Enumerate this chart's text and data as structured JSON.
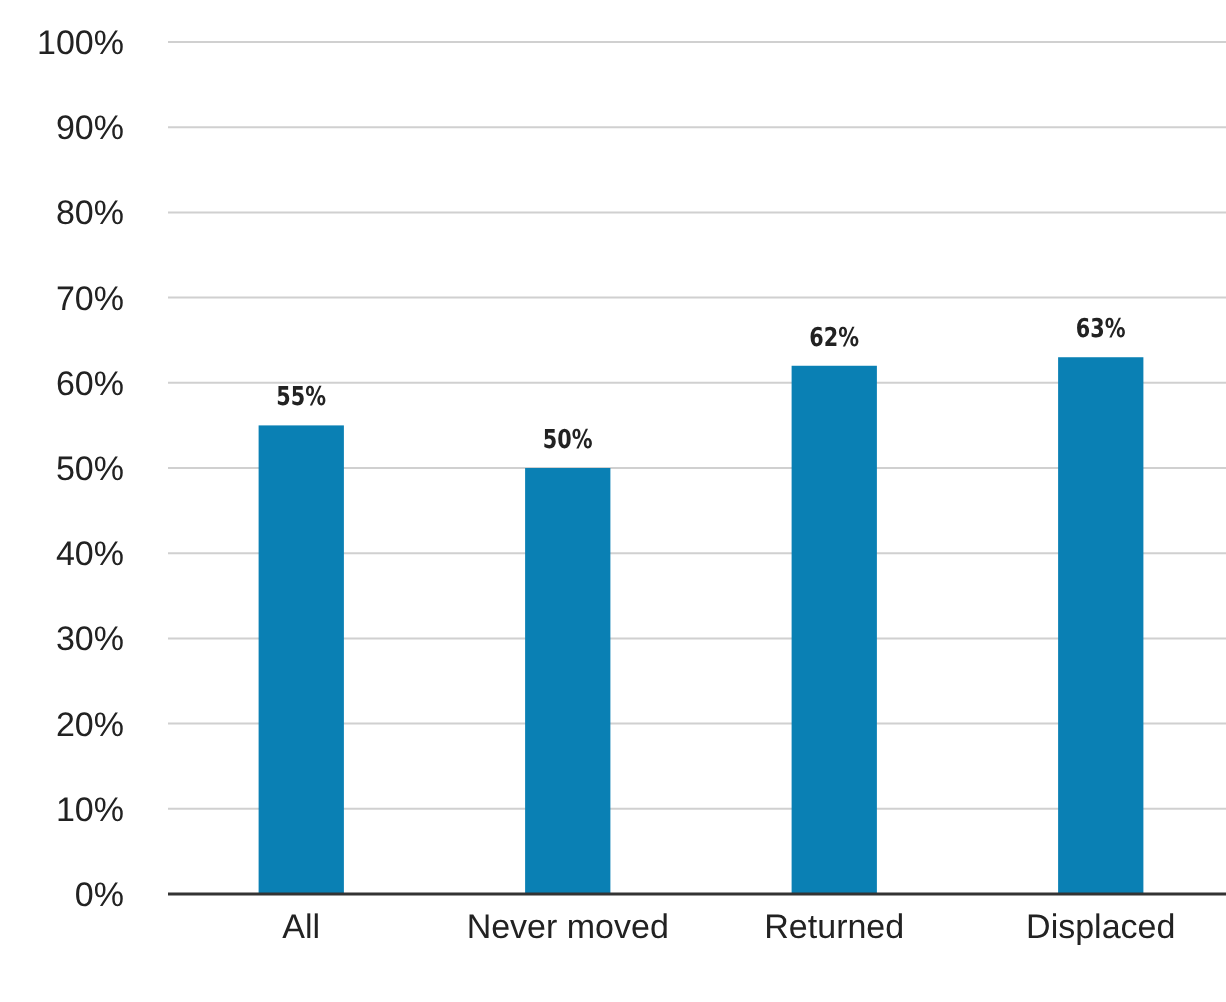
{
  "chart_data": {
    "type": "bar",
    "categories": [
      "All",
      "Never moved",
      "Returned",
      "Displaced"
    ],
    "values": [
      55,
      50,
      62,
      63
    ],
    "value_labels": [
      "55%",
      "50%",
      "62%",
      "63%"
    ],
    "color": "#0a80b4",
    "ylim": [
      0,
      100
    ],
    "yticks": [
      {
        "value": 0,
        "label": "0%"
      },
      {
        "value": 10,
        "label": "10%"
      },
      {
        "value": 20,
        "label": "20%"
      },
      {
        "value": 30,
        "label": "30%"
      },
      {
        "value": 40,
        "label": "40%"
      },
      {
        "value": 50,
        "label": "50%"
      },
      {
        "value": 60,
        "label": "60%"
      },
      {
        "value": 70,
        "label": "70%"
      },
      {
        "value": 80,
        "label": "80%"
      },
      {
        "value": 90,
        "label": "90%"
      },
      {
        "value": 100,
        "label": "100%"
      }
    ],
    "grid": "y"
  }
}
